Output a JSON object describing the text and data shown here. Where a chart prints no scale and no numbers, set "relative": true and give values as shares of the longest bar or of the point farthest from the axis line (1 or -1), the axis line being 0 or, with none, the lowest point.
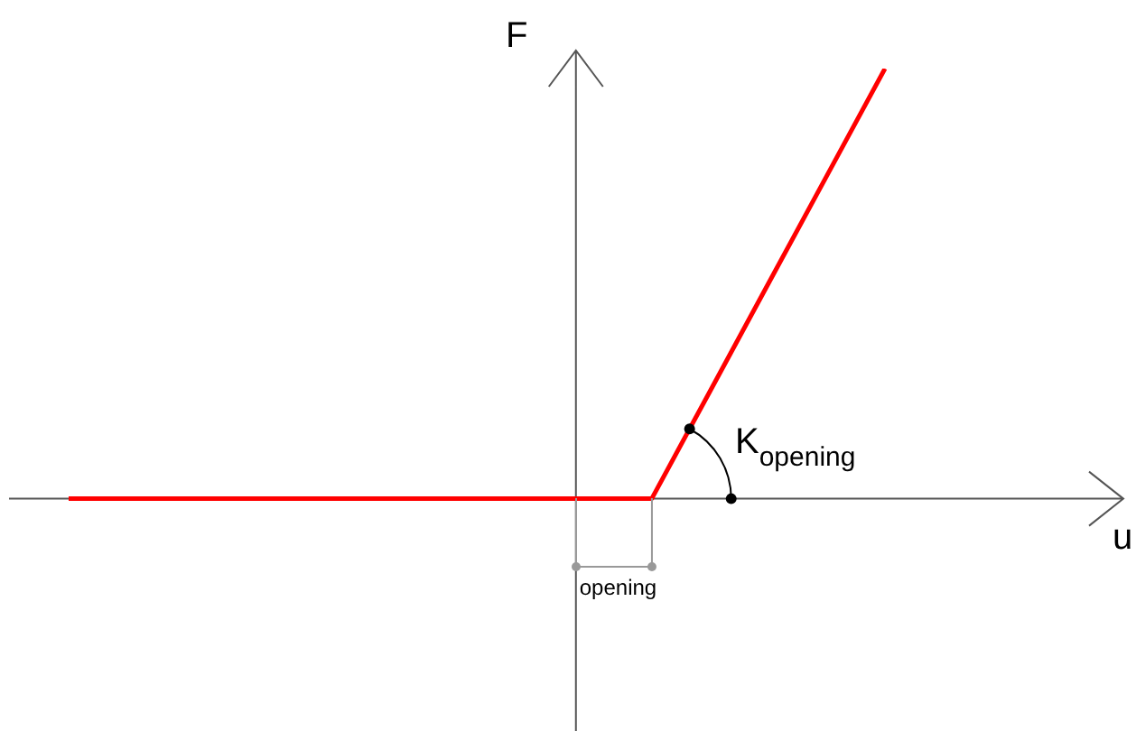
{
  "chart_data": {
    "type": "line",
    "relative": true,
    "categories": [
      null,
      null,
      null,
      null,
      null,
      null,
      null,
      null,
      null,
      null,
      null,
      null,
      null,
      null,
      null
    ],
    "series": [
      {
        "color": "#ff0000",
        "values": [
          0,
          0,
          0,
          0,
          0,
          0,
          0,
          0,
          0,
          0,
          0,
          0.25,
          0.5,
          0.75,
          1
        ]
      }
    ],
    "annotations": [
      "F",
      "u",
      "K$_{opening}$",
      "opening"
    ],
    "marker": "none",
    "line_style": "solid",
    "legend": false
  }
}
